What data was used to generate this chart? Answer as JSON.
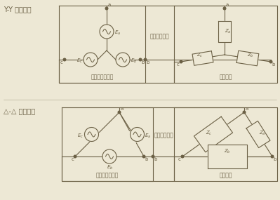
{
  "bg_color": "#ede8d5",
  "line_color": "#6b6045",
  "title1": "Y-Y 星形接法",
  "title2": "△-△ 三角接法",
  "label_san_xiang1": "三相平衡电路",
  "label_san_xiang2": "三相平衡电路",
  "label_dui_cheng1": "对称三相交流电",
  "label_dui_cheng2": "对称三相交流电",
  "label_ping_heng1": "平衡负载",
  "label_ping_heng2": "平衡负载",
  "font_size_title": 7.0,
  "font_size_label": 5.5,
  "font_size_node": 5.0
}
